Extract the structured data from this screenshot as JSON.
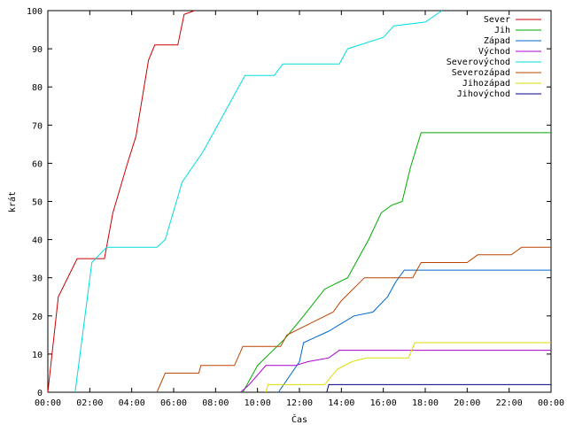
{
  "chart_data": {
    "type": "line",
    "xlabel": "Čas",
    "ylabel": "krát",
    "xlim": [
      0,
      24
    ],
    "ylim": [
      0,
      100
    ],
    "grid": false,
    "legend_position": "top-right",
    "x_tick_labels": [
      "00:00",
      "02:00",
      "04:00",
      "06:00",
      "08:00",
      "10:00",
      "12:00",
      "14:00",
      "16:00",
      "18:00",
      "20:00",
      "22:00",
      "00:00"
    ],
    "y_tick_labels": [
      "0",
      "10",
      "20",
      "30",
      "40",
      "50",
      "60",
      "70",
      "80",
      "90",
      "100"
    ],
    "series": [
      {
        "name": "Sever",
        "color": "#cc0000",
        "points": [
          [
            0,
            0
          ],
          [
            0.5,
            25
          ],
          [
            1.4,
            35
          ],
          [
            2.7,
            35
          ],
          [
            3.1,
            47
          ],
          [
            3.8,
            60
          ],
          [
            4.2,
            67
          ],
          [
            4.8,
            87
          ],
          [
            5.1,
            91
          ],
          [
            6.2,
            91
          ],
          [
            6.5,
            99
          ],
          [
            7,
            100
          ]
        ]
      },
      {
        "name": "Jih",
        "color": "#00aa00",
        "points": [
          [
            9.3,
            0
          ],
          [
            10,
            7
          ],
          [
            11.3,
            14
          ],
          [
            12.2,
            20
          ],
          [
            13.2,
            27
          ],
          [
            14.3,
            30
          ],
          [
            15.3,
            40
          ],
          [
            15.9,
            47
          ],
          [
            16.4,
            49
          ],
          [
            16.9,
            50
          ],
          [
            17.3,
            59
          ],
          [
            17.8,
            68
          ],
          [
            24,
            68
          ]
        ]
      },
      {
        "name": "Západ",
        "color": "#0066cc",
        "points": [
          [
            11,
            0
          ],
          [
            12,
            8
          ],
          [
            12.2,
            13
          ],
          [
            13.4,
            16
          ],
          [
            14,
            18
          ],
          [
            14.6,
            20
          ],
          [
            15.5,
            21
          ],
          [
            16.2,
            25
          ],
          [
            16.6,
            29
          ],
          [
            17,
            32
          ],
          [
            24,
            32
          ]
        ]
      },
      {
        "name": "Východ",
        "color": "#aa00cc",
        "points": [
          [
            9.2,
            0
          ],
          [
            9.6,
            2
          ],
          [
            10.4,
            7
          ],
          [
            11.8,
            7
          ],
          [
            12.4,
            8
          ],
          [
            13.4,
            9
          ],
          [
            13.9,
            11
          ],
          [
            24,
            11
          ]
        ]
      },
      {
        "name": "Severovýchod",
        "color": "#00dddd",
        "points": [
          [
            1.3,
            0
          ],
          [
            2.1,
            34
          ],
          [
            2.8,
            38
          ],
          [
            5.2,
            38
          ],
          [
            5.6,
            40
          ],
          [
            6.4,
            55
          ],
          [
            7.4,
            63
          ],
          [
            8.3,
            72
          ],
          [
            9.4,
            83
          ],
          [
            10.8,
            83
          ],
          [
            11.2,
            86
          ],
          [
            13.9,
            86
          ],
          [
            14.3,
            90
          ],
          [
            16,
            93
          ],
          [
            16.5,
            96
          ],
          [
            18,
            97
          ],
          [
            18.8,
            100
          ]
        ]
      },
      {
        "name": "Severozápad",
        "color": "#bb4400",
        "points": [
          [
            5.2,
            0
          ],
          [
            5.6,
            5
          ],
          [
            7.2,
            5
          ],
          [
            7.3,
            7
          ],
          [
            8.9,
            7
          ],
          [
            9.3,
            12
          ],
          [
            11.1,
            12
          ],
          [
            11.4,
            15
          ],
          [
            12.5,
            18
          ],
          [
            13.6,
            21
          ],
          [
            14,
            24
          ],
          [
            15.1,
            30
          ],
          [
            17.4,
            30
          ],
          [
            17.8,
            34
          ],
          [
            20,
            34
          ],
          [
            20.5,
            36
          ],
          [
            22.1,
            36
          ],
          [
            22.6,
            38
          ],
          [
            24,
            38
          ]
        ]
      },
      {
        "name": "Jihozápad",
        "color": "#dddd00",
        "points": [
          [
            10.4,
            0
          ],
          [
            10.5,
            2
          ],
          [
            13.2,
            2
          ],
          [
            13.8,
            6
          ],
          [
            14.5,
            8
          ],
          [
            15.2,
            9
          ],
          [
            17.2,
            9
          ],
          [
            17.5,
            13
          ],
          [
            24,
            13
          ]
        ]
      },
      {
        "name": "Jihovýchod",
        "color": "#000088",
        "points": [
          [
            13.3,
            0
          ],
          [
            13.4,
            2
          ],
          [
            24,
            2
          ]
        ]
      }
    ]
  }
}
